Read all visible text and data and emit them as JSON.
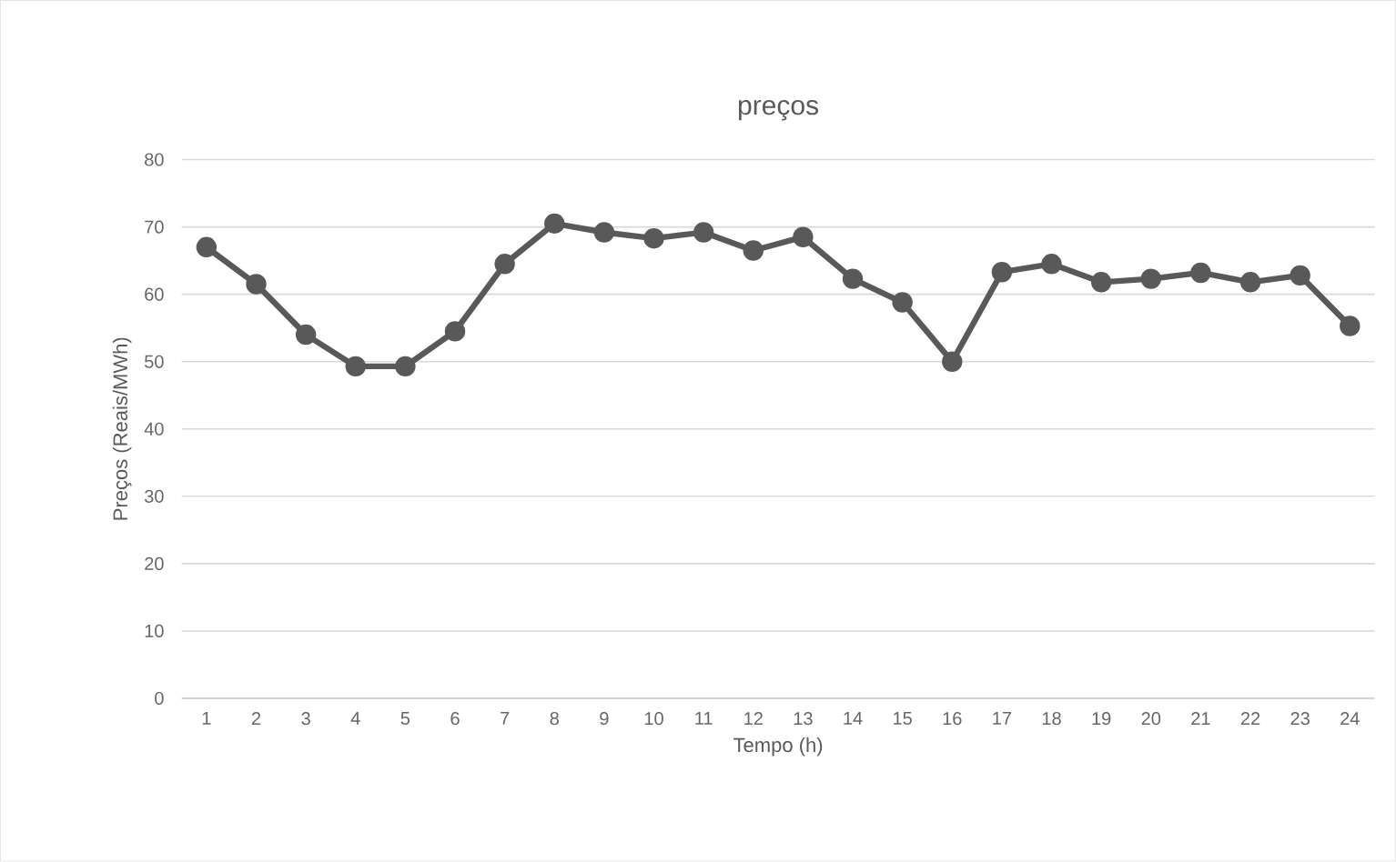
{
  "chart_data": {
    "type": "line",
    "title": "preços",
    "xlabel": "Tempo  (h)",
    "ylabel": "Preços (Reais/MWh)",
    "categories": [
      "1",
      "2",
      "3",
      "4",
      "5",
      "6",
      "7",
      "8",
      "9",
      "10",
      "11",
      "12",
      "13",
      "14",
      "15",
      "16",
      "17",
      "18",
      "19",
      "20",
      "21",
      "22",
      "23",
      "24"
    ],
    "series": [
      {
        "color": "#595959",
        "values": [
          67,
          61.5,
          54,
          49.3,
          49.3,
          54.5,
          64.5,
          70.5,
          69.2,
          68.3,
          69.2,
          66.5,
          68.5,
          62.3,
          58.8,
          50,
          63.3,
          64.5,
          61.8,
          62.3,
          63.2,
          61.8,
          62.8,
          55.3
        ]
      }
    ],
    "ylim": [
      0,
      80
    ],
    "yticks": [
      0,
      10,
      20,
      30,
      40,
      50,
      60,
      70,
      80
    ],
    "grid": "y",
    "marker": "circle",
    "line_style": "solid"
  }
}
